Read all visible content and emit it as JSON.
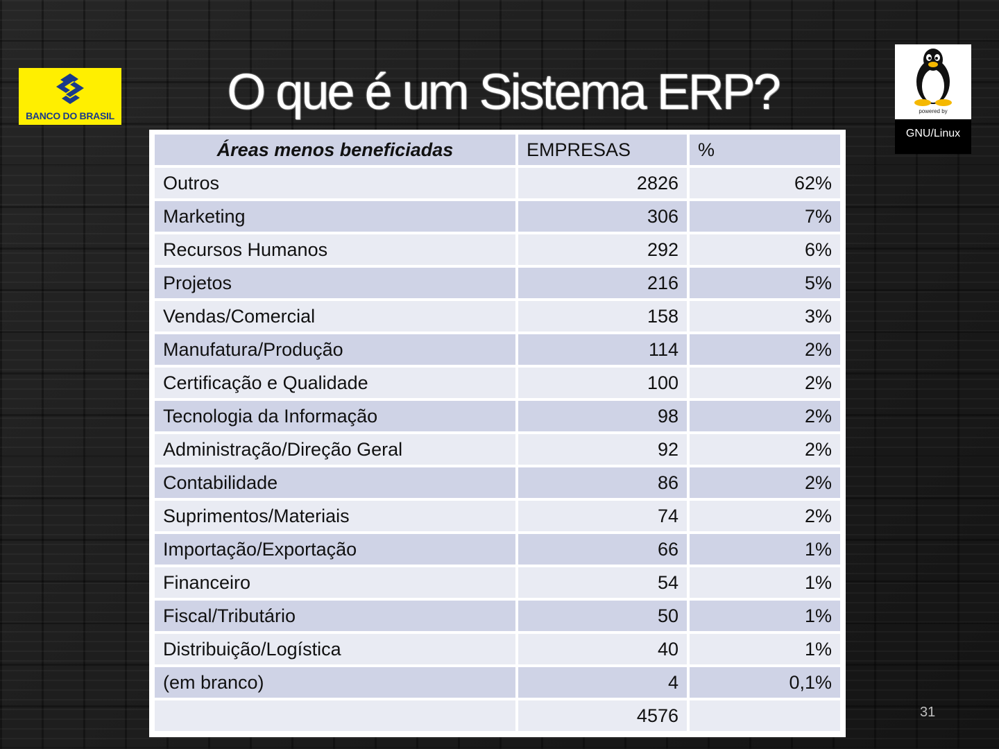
{
  "logo_left": {
    "text": "BANCO DO BRASIL",
    "colors": {
      "background": "#ffef00",
      "mark": "#1a3a8a"
    }
  },
  "title": "O que é um Sistema ERP?",
  "logo_right": {
    "powered_by": "powered by",
    "label": "GNU/Linux",
    "icon": "tux-penguin-icon"
  },
  "table": {
    "headers": [
      "Áreas menos beneficiadas",
      "EMPRESAS",
      "%"
    ],
    "rows": [
      [
        "Outros",
        "2826",
        "62%"
      ],
      [
        "Marketing",
        "306",
        "7%"
      ],
      [
        "Recursos Humanos",
        "292",
        "6%"
      ],
      [
        "Projetos",
        "216",
        "5%"
      ],
      [
        "Vendas/Comercial",
        "158",
        "3%"
      ],
      [
        "Manufatura/Produção",
        "114",
        "2%"
      ],
      [
        "Certificação e Qualidade",
        "100",
        "2%"
      ],
      [
        "Tecnologia da Informação",
        "98",
        "2%"
      ],
      [
        "Administração/Direção Geral",
        "92",
        "2%"
      ],
      [
        "Contabilidade",
        "86",
        "2%"
      ],
      [
        "Suprimentos/Materiais",
        "74",
        "2%"
      ],
      [
        "Importação/Exportação",
        "66",
        "1%"
      ],
      [
        "Financeiro",
        "54",
        "1%"
      ],
      [
        "Fiscal/Tributário",
        "50",
        "1%"
      ],
      [
        "Distribuição/Logística",
        "40",
        "1%"
      ],
      [
        "(em branco)",
        "4",
        "0,1%"
      ],
      [
        "",
        "4576",
        ""
      ]
    ]
  },
  "page_number": "31"
}
